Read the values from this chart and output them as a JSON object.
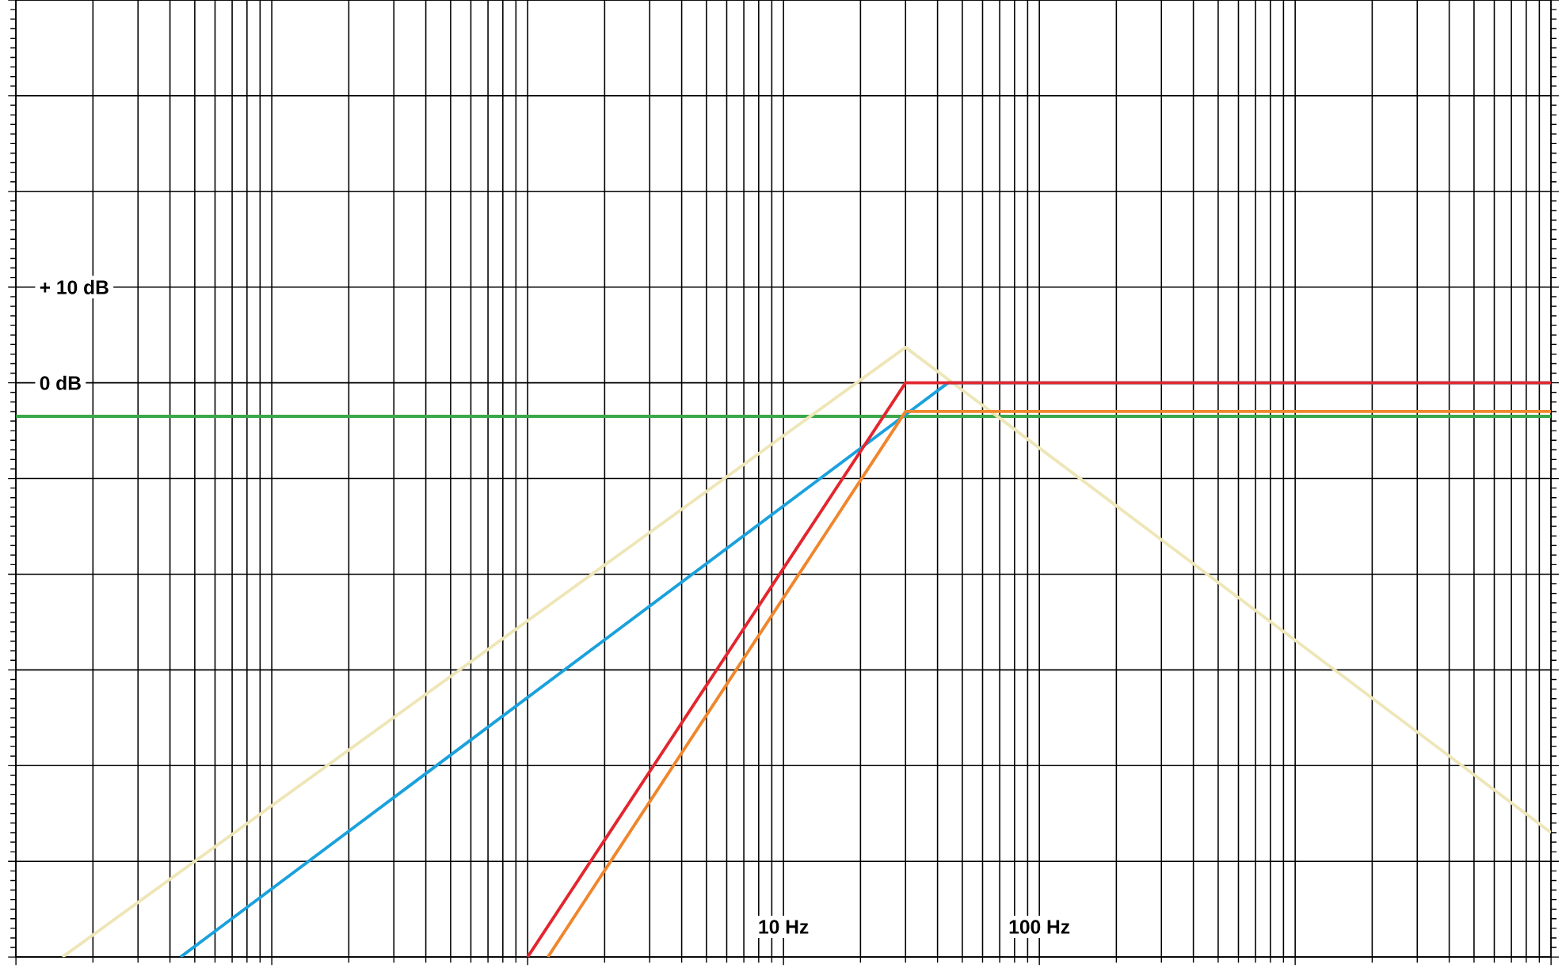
{
  "chart_data": {
    "type": "line",
    "series": [
      {
        "color": "#3aa84a",
        "x": [
          0.01,
          10000
        ],
        "values": [
          -3.5,
          -3.5
        ]
      },
      {
        "color": "#efe6b8",
        "x": [
          0.0152,
          30,
          10000
        ],
        "values": [
          -60,
          3.7,
          -47
        ]
      },
      {
        "color": "#1ba1dd",
        "x": [
          0.044,
          44,
          10000
        ],
        "values": [
          -60,
          0,
          0
        ]
      },
      {
        "color": "#e3262e",
        "x": [
          1.0,
          30,
          10000
        ],
        "values": [
          -60,
          0,
          0
        ]
      },
      {
        "color": "#f0862c",
        "x": [
          1.2,
          30,
          10000
        ],
        "values": [
          -60,
          -3,
          -3
        ]
      }
    ],
    "log": "x",
    "xlim": [
      0.01,
      10000
    ],
    "ylim": [
      -60,
      40
    ],
    "xticks": [
      {
        "value": 0.01,
        "label": null
      },
      {
        "value": 0.1,
        "label": null
      },
      {
        "value": 1,
        "label": null
      },
      {
        "value": 10,
        "label": "10 Hz"
      },
      {
        "value": 100,
        "label": "100 Hz"
      },
      {
        "value": 1000,
        "label": null
      },
      {
        "value": 10000,
        "label": null
      }
    ],
    "yticks": [
      {
        "value": -60,
        "label": null
      },
      {
        "value": -50,
        "label": null
      },
      {
        "value": -40,
        "label": null
      },
      {
        "value": -30,
        "label": null
      },
      {
        "value": -20,
        "label": null
      },
      {
        "value": -10,
        "label": null
      },
      {
        "value": 0,
        "label": "0 dB"
      },
      {
        "value": 10,
        "label": "+ 10 dB"
      },
      {
        "value": 20,
        "label": null
      },
      {
        "value": 30,
        "label": null
      },
      {
        "value": 40,
        "label": null
      }
    ],
    "grid": true,
    "marker": "none"
  }
}
